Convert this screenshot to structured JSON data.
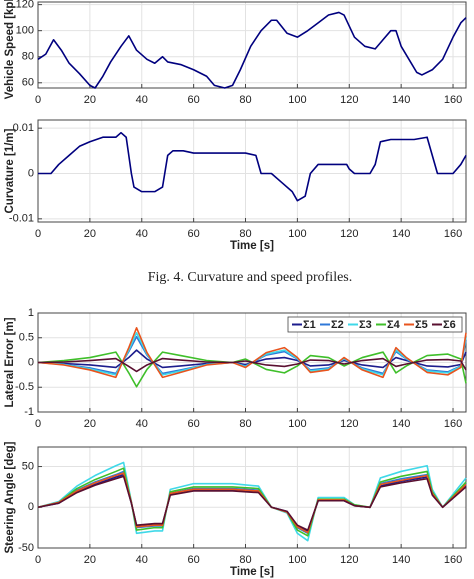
{
  "caption": "Fig. 4.    Curvature and speed profiles.",
  "chart_data": [
    {
      "type": "line",
      "ylabel": "Vehicle Speed [kph]",
      "color": "#00007f",
      "x": [
        0,
        3,
        6,
        9,
        12,
        16,
        20,
        22,
        25,
        28,
        32,
        35,
        38,
        42,
        45,
        48,
        50,
        55,
        60,
        65,
        68,
        72,
        75,
        78,
        82,
        86,
        90,
        92,
        96,
        100,
        104,
        108,
        112,
        116,
        118,
        122,
        126,
        130,
        133,
        136,
        138,
        140,
        143,
        146,
        148,
        152,
        156,
        160,
        163,
        165
      ],
      "values": [
        78,
        82,
        93,
        85,
        75,
        67,
        58,
        56,
        65,
        76,
        88,
        96,
        85,
        78,
        75,
        80,
        76,
        74,
        70,
        65,
        58,
        56,
        58,
        70,
        88,
        100,
        108,
        108,
        98,
        95,
        100,
        106,
        112,
        114,
        112,
        95,
        88,
        86,
        93,
        100,
        100,
        88,
        78,
        68,
        66,
        70,
        78,
        95,
        106,
        110
      ],
      "xlim": [
        0,
        165
      ],
      "xticks": [
        0,
        20,
        40,
        60,
        80,
        100,
        120,
        140,
        160
      ],
      "ylim": [
        56,
        122
      ],
      "yticks": [
        60,
        80,
        100,
        120
      ],
      "grid": true
    },
    {
      "type": "line",
      "ylabel": "Curvature [1/m]",
      "xlabel": "Time [s]",
      "color": "#00007f",
      "x": [
        0,
        5,
        8,
        12,
        16,
        20,
        25,
        30,
        32,
        34,
        36,
        37,
        40,
        45,
        48,
        50,
        52,
        56,
        60,
        70,
        80,
        84,
        86,
        90,
        94,
        98,
        100,
        103,
        105,
        108,
        115,
        119,
        120,
        122,
        125,
        128,
        130,
        132,
        136,
        145,
        150,
        152,
        154,
        160,
        163,
        165
      ],
      "values": [
        0,
        0,
        0.002,
        0.004,
        0.006,
        0.007,
        0.008,
        0.008,
        0.009,
        0.008,
        0,
        -0.003,
        -0.004,
        -0.004,
        -0.003,
        0.004,
        0.005,
        0.005,
        0.0045,
        0.0045,
        0.0045,
        0.004,
        0,
        0,
        -0.002,
        -0.004,
        -0.006,
        -0.005,
        0,
        0.002,
        0.002,
        0.002,
        0.001,
        0,
        0,
        0,
        0.002,
        0.007,
        0.0075,
        0.0075,
        0.008,
        0.004,
        0,
        0,
        0.002,
        0.004
      ],
      "xlim": [
        0,
        165
      ],
      "xticks": [
        0,
        20,
        40,
        60,
        80,
        100,
        120,
        140,
        160
      ],
      "ylim": [
        -0.0107,
        0.0118
      ],
      "yticks": [
        -0.01,
        0,
        0.01
      ],
      "grid": true
    },
    {
      "type": "line",
      "ylabel": "Lateral Error [m]",
      "x": [
        0,
        10,
        20,
        30,
        35,
        38,
        42,
        48,
        55,
        65,
        75,
        80,
        88,
        95,
        100,
        105,
        112,
        118,
        125,
        133,
        138,
        142,
        150,
        158,
        163,
        165
      ],
      "series": [
        {
          "name": "Σ1",
          "color": "#1c1c8c",
          "values": [
            0,
            -0.02,
            -0.05,
            -0.1,
            0.1,
            0.25,
            0.07,
            -0.1,
            -0.07,
            -0.02,
            0,
            -0.04,
            0.07,
            0.1,
            0.04,
            -0.07,
            -0.05,
            0.04,
            -0.05,
            -0.1,
            0.1,
            0.04,
            -0.07,
            -0.09,
            -0.04,
            0.21
          ]
        },
        {
          "name": "Σ2",
          "color": "#2f78d8",
          "values": [
            0,
            -0.04,
            -0.11,
            -0.22,
            0.22,
            0.52,
            0.15,
            -0.22,
            -0.15,
            -0.04,
            0,
            -0.07,
            0.15,
            0.22,
            0.07,
            -0.15,
            -0.11,
            0.07,
            -0.11,
            -0.22,
            0.22,
            0.07,
            -0.15,
            -0.19,
            -0.07,
            0.45
          ]
        },
        {
          "name": "Σ3",
          "color": "#3fd8e8",
          "values": [
            0,
            -0.04,
            -0.13,
            -0.25,
            0.25,
            0.6,
            0.17,
            -0.25,
            -0.17,
            -0.04,
            0,
            -0.08,
            0.17,
            0.25,
            0.08,
            -0.17,
            -0.13,
            0.08,
            -0.13,
            -0.25,
            0.25,
            0.08,
            -0.17,
            -0.21,
            -0.08,
            0.51
          ]
        },
        {
          "name": "Σ4",
          "color": "#3fbf2a",
          "values": [
            0,
            0.04,
            0.1,
            0.21,
            -0.21,
            -0.49,
            -0.14,
            0.21,
            0.14,
            0.04,
            0,
            0.07,
            -0.14,
            -0.21,
            -0.07,
            0.14,
            0.1,
            -0.07,
            0.1,
            0.21,
            -0.21,
            -0.07,
            0.14,
            0.17,
            0.07,
            -0.42
          ]
        },
        {
          "name": "Σ5",
          "color": "#e8541e",
          "values": [
            0,
            -0.05,
            -0.15,
            -0.3,
            0.3,
            0.7,
            0.2,
            -0.3,
            -0.2,
            -0.05,
            0,
            -0.1,
            0.2,
            0.3,
            0.1,
            -0.2,
            -0.15,
            0.1,
            -0.15,
            -0.3,
            0.3,
            0.1,
            -0.2,
            -0.25,
            -0.1,
            0.6
          ]
        },
        {
          "name": "Σ6",
          "color": "#5a1030",
          "values": [
            0,
            0.01,
            0.04,
            0.08,
            -0.08,
            -0.18,
            -0.05,
            0.08,
            0.05,
            0.01,
            0,
            0.03,
            -0.05,
            -0.08,
            -0.03,
            0.05,
            0.04,
            -0.03,
            0.04,
            0.08,
            -0.08,
            -0.03,
            0.05,
            0.06,
            0.03,
            -0.15
          ]
        }
      ],
      "xlim": [
        0,
        165
      ],
      "xticks": [
        0,
        20,
        40,
        60,
        80,
        100,
        120,
        140,
        160
      ],
      "ylim": [
        -1,
        1
      ],
      "yticks": [
        -1,
        -0.5,
        0,
        0.5,
        1
      ],
      "grid": true,
      "legend": "top-right"
    },
    {
      "type": "line",
      "ylabel": "Steering Angle [deg]",
      "xlabel": "Time [s]",
      "x": [
        0,
        8,
        15,
        22,
        30,
        33,
        36,
        38,
        45,
        48,
        51,
        60,
        75,
        85,
        90,
        96,
        100,
        104,
        108,
        118,
        122,
        128,
        132,
        140,
        150,
        152,
        156,
        165
      ],
      "series": [
        {
          "name": "Σ1",
          "color": "#1c1c8c",
          "values": [
            0,
            5,
            19,
            28,
            37,
            40,
            5,
            -23,
            -21,
            -21,
            16,
            21,
            21,
            19,
            0,
            -5,
            -23,
            -29,
            8,
            8,
            2,
            0,
            26,
            32,
            37,
            16,
            0,
            26
          ]
        },
        {
          "name": "Σ2",
          "color": "#2f78d8",
          "values": [
            0,
            6,
            21,
            31,
            40,
            44,
            6,
            -25,
            -23,
            -23,
            17,
            23,
            23,
            21,
            0,
            -6,
            -25,
            -32,
            9,
            9,
            2,
            0,
            29,
            35,
            40,
            17,
            0,
            29
          ]
        },
        {
          "name": "Σ3",
          "color": "#3fd8e8",
          "values": [
            0,
            7,
            26,
            39,
            51,
            55,
            7,
            -32,
            -29,
            -29,
            22,
            29,
            29,
            26,
            0,
            -7,
            -32,
            -41,
            12,
            12,
            3,
            0,
            36,
            44,
            51,
            22,
            0,
            36
          ]
        },
        {
          "name": "Σ4",
          "color": "#3fbf2a",
          "values": [
            0,
            6,
            23,
            34,
            44,
            48,
            6,
            -28,
            -25,
            -25,
            19,
            25,
            25,
            23,
            0,
            -6,
            -28,
            -35,
            10,
            10,
            3,
            0,
            31,
            38,
            44,
            19,
            0,
            31
          ]
        },
        {
          "name": "Σ5",
          "color": "#e8541e",
          "values": [
            0,
            6,
            20,
            30,
            39,
            42,
            6,
            -24,
            -22,
            -22,
            17,
            22,
            22,
            20,
            0,
            -6,
            -24,
            -31,
            9,
            9,
            2,
            0,
            28,
            33,
            39,
            17,
            0,
            28
          ]
        },
        {
          "name": "Σ6",
          "color": "#5a1030",
          "values": [
            0,
            5,
            18,
            27,
            35,
            38,
            5,
            -22,
            -20,
            -20,
            15,
            20,
            20,
            18,
            0,
            -5,
            -22,
            -28,
            8,
            8,
            2,
            0,
            25,
            30,
            35,
            15,
            0,
            25
          ]
        }
      ],
      "xlim": [
        0,
        165
      ],
      "xticks": [
        0,
        20,
        40,
        60,
        80,
        100,
        120,
        140,
        160
      ],
      "ylim": [
        -50,
        74
      ],
      "yticks": [
        -50,
        0,
        50
      ],
      "grid": true
    }
  ]
}
